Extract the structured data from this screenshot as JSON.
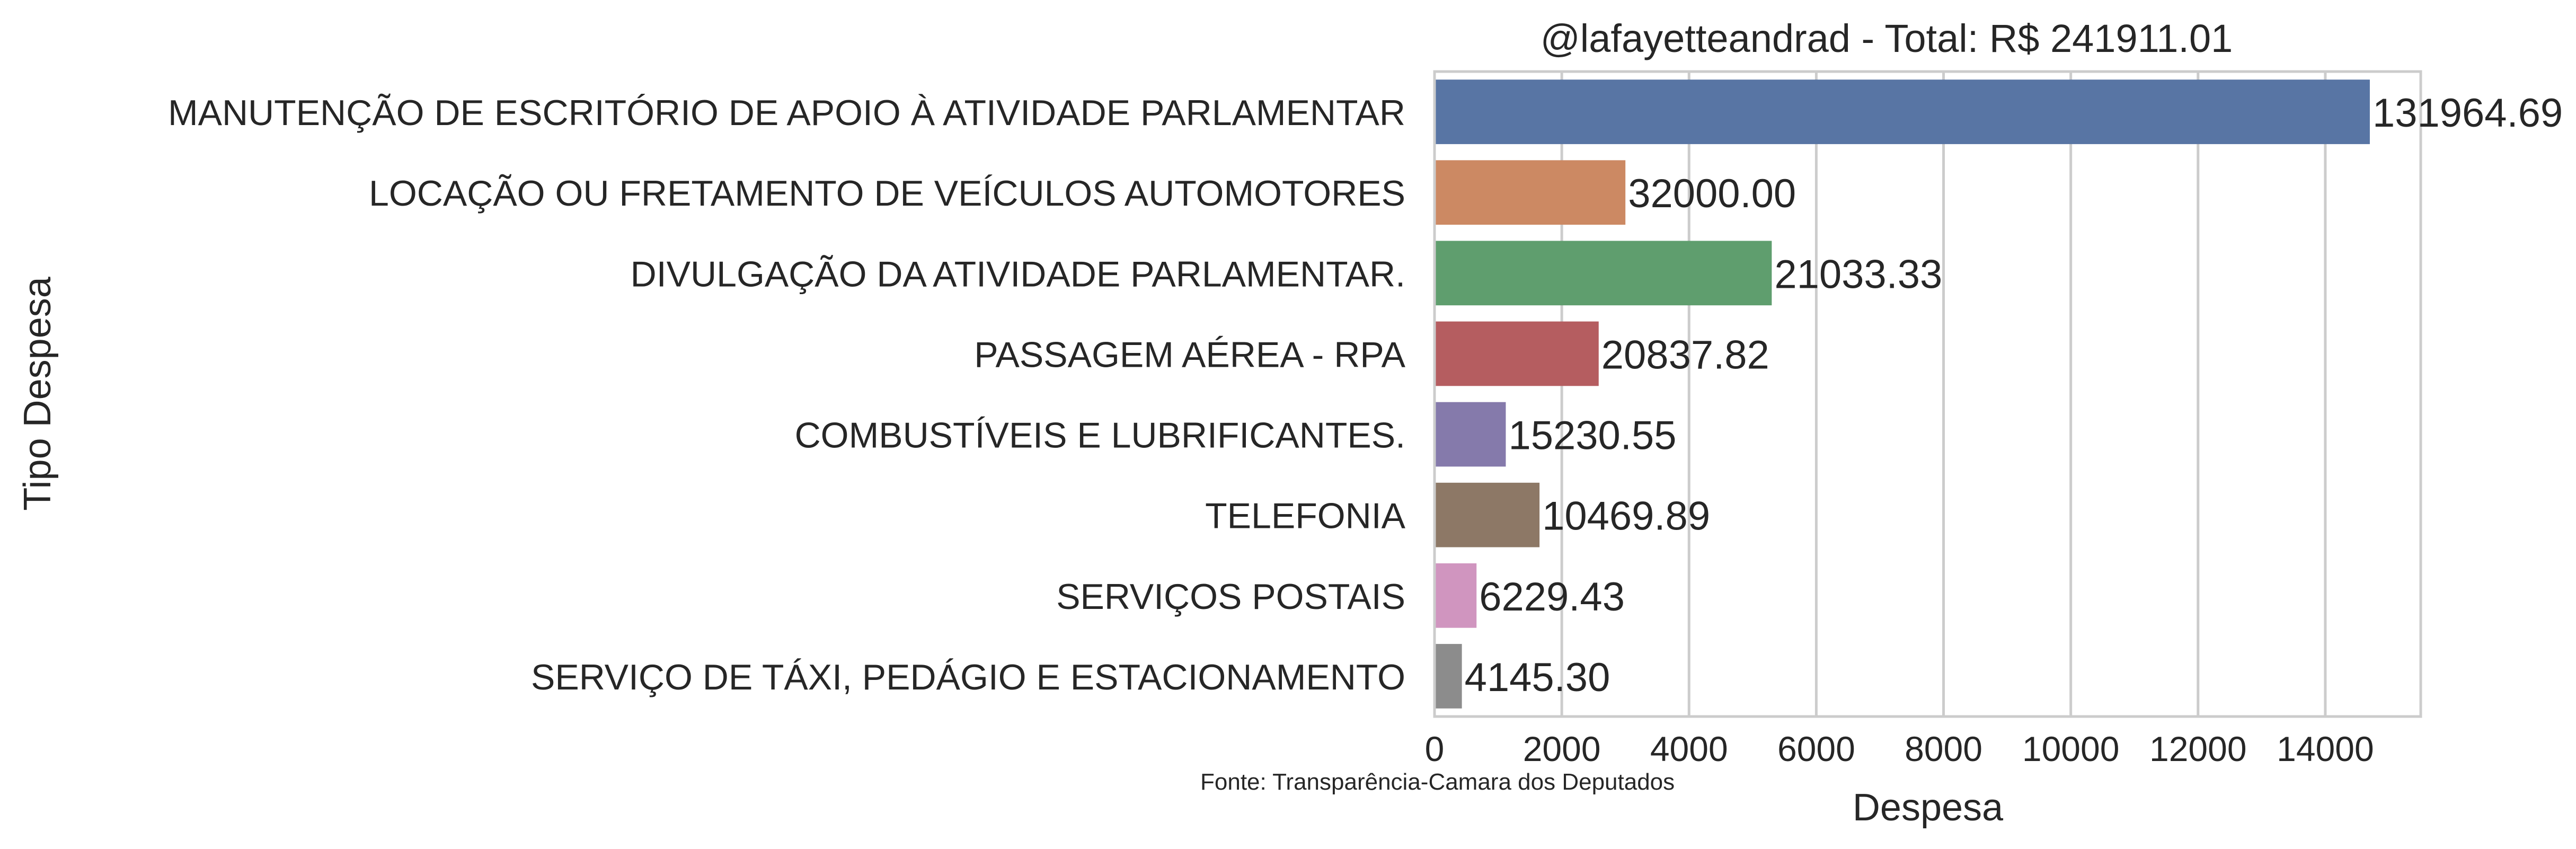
{
  "chart_data": {
    "type": "bar",
    "orientation": "horizontal",
    "title": "@lafayetteandrad - Total: R$ 241911.01",
    "xlabel": "Despesa",
    "ylabel": "Tipo Despesa",
    "source_note": "Fonte: Transparência-Camara dos Deputados",
    "xlim": [
      0,
      15500
    ],
    "xticks": [
      0,
      2000,
      4000,
      6000,
      8000,
      10000,
      12000,
      14000
    ],
    "grid": true,
    "categories": [
      "MANUTENÇÃO DE ESCRITÓRIO DE APOIO À ATIVIDADE PARLAMENTAR",
      "LOCAÇÃO OU FRETAMENTO DE VEÍCULOS AUTOMOTORES",
      "DIVULGAÇÃO DA ATIVIDADE PARLAMENTAR.",
      "PASSAGEM AÉREA - RPA",
      "COMBUSTÍVEIS E LUBRIFICANTES.",
      "TELEFONIA",
      "SERVIÇOS POSTAIS",
      "SERVIÇO DE TÁXI, PEDÁGIO E ESTACIONAMENTO"
    ],
    "values": [
      14700,
      3000,
      5300,
      2580,
      1120,
      1650,
      660,
      430
    ],
    "value_labels": [
      "131964.69",
      "32000.00",
      "21033.33",
      "20837.82",
      "15230.55",
      "10469.89",
      "6229.43",
      "4145.30"
    ],
    "colors": [
      "#5875a4",
      "#cc8963",
      "#5f9e6e",
      "#b55d60",
      "#857aab",
      "#8d7866",
      "#d095bf",
      "#8c8c8c"
    ]
  }
}
